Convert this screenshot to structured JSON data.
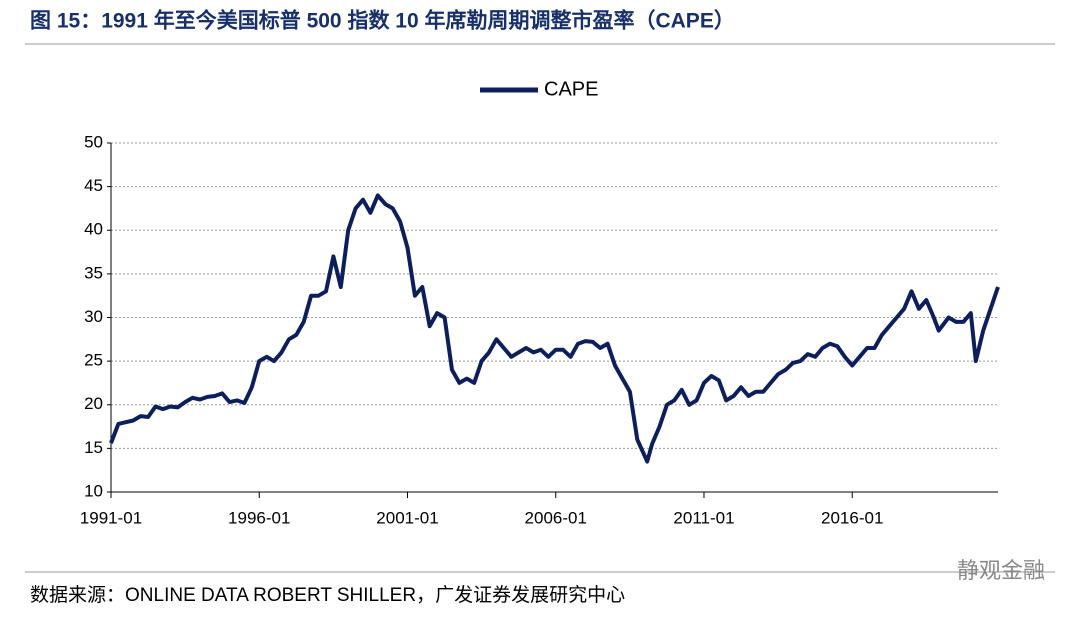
{
  "chart_data": {
    "type": "line",
    "title": "图 15：1991 年至今美国标普 500 指数 10 年席勒周期调整市盈率（CAPE）",
    "source": "数据来源：ONLINE DATA ROBERT SHILLER，广发证券发展研究中心",
    "watermark": "静观金融",
    "x": [
      "1991-01",
      "1991-04",
      "1991-07",
      "1991-10",
      "1992-01",
      "1992-04",
      "1992-07",
      "1992-10",
      "1993-01",
      "1993-04",
      "1993-07",
      "1993-10",
      "1994-01",
      "1994-04",
      "1994-07",
      "1994-10",
      "1995-01",
      "1995-04",
      "1995-07",
      "1995-10",
      "1996-01",
      "1996-04",
      "1996-07",
      "1996-10",
      "1997-01",
      "1997-04",
      "1997-07",
      "1997-10",
      "1998-01",
      "1998-04",
      "1998-07",
      "1998-10",
      "1999-01",
      "1999-04",
      "1999-07",
      "1999-10",
      "2000-01",
      "2000-04",
      "2000-07",
      "2000-10",
      "2001-01",
      "2001-04",
      "2001-07",
      "2001-10",
      "2002-01",
      "2002-04",
      "2002-07",
      "2002-10",
      "2003-01",
      "2003-04",
      "2003-07",
      "2003-10",
      "2004-01",
      "2004-04",
      "2004-07",
      "2004-10",
      "2005-01",
      "2005-04",
      "2005-07",
      "2005-10",
      "2006-01",
      "2006-04",
      "2006-07",
      "2006-10",
      "2007-01",
      "2007-04",
      "2007-07",
      "2007-10",
      "2008-01",
      "2008-04",
      "2008-07",
      "2008-10",
      "2009-02",
      "2009-04",
      "2009-07",
      "2009-10",
      "2010-01",
      "2010-04",
      "2010-07",
      "2010-10",
      "2011-01",
      "2011-04",
      "2011-07",
      "2011-10",
      "2012-01",
      "2012-04",
      "2012-07",
      "2012-10",
      "2013-01",
      "2013-04",
      "2013-07",
      "2013-10",
      "2014-01",
      "2014-04",
      "2014-07",
      "2014-10",
      "2015-01",
      "2015-04",
      "2015-07",
      "2015-10",
      "2016-01",
      "2016-04",
      "2016-07",
      "2016-10",
      "2017-01",
      "2017-04",
      "2017-07",
      "2017-10",
      "2018-01",
      "2018-04",
      "2018-07",
      "2018-10",
      "2018-12",
      "2019-04",
      "2019-07",
      "2019-10",
      "2020-01",
      "2020-03",
      "2020-06",
      "2020-09",
      "2020-12"
    ],
    "series": [
      {
        "name": "CAPE",
        "color": "#0c1f5c",
        "values": [
          15.6,
          17.8,
          18.0,
          18.2,
          18.7,
          18.6,
          19.8,
          19.5,
          19.8,
          19.7,
          20.3,
          20.8,
          20.6,
          20.9,
          21.0,
          21.3,
          20.3,
          20.5,
          20.2,
          22.0,
          25.0,
          25.5,
          25.0,
          26.0,
          27.5,
          28.0,
          29.5,
          32.5,
          32.5,
          33.0,
          37.0,
          33.5,
          40.0,
          42.5,
          43.5,
          42.0,
          44.0,
          43.0,
          42.5,
          41.0,
          38.0,
          32.5,
          33.5,
          29.0,
          30.5,
          30.0,
          24.0,
          22.5,
          23.0,
          22.5,
          25.0,
          26.0,
          27.5,
          26.5,
          25.5,
          26.0,
          26.5,
          26.0,
          26.3,
          25.5,
          26.3,
          26.3,
          25.5,
          27.0,
          27.3,
          27.2,
          26.5,
          27.0,
          24.5,
          23.0,
          21.5,
          16.0,
          13.5,
          15.5,
          17.5,
          20.0,
          20.5,
          21.7,
          20.0,
          20.5,
          22.5,
          23.3,
          22.8,
          20.5,
          21.0,
          22.0,
          21.0,
          21.5,
          21.5,
          22.5,
          23.5,
          24.0,
          24.8,
          25.0,
          25.8,
          25.5,
          26.5,
          27.0,
          26.7,
          25.5,
          24.5,
          25.5,
          26.5,
          26.5,
          28.0,
          29.0,
          30.0,
          31.0,
          33.0,
          31.0,
          32.0,
          30.0,
          28.5,
          30.0,
          29.5,
          29.5,
          30.5,
          25.0,
          28.5,
          31.0,
          33.5
        ]
      }
    ],
    "xlim": [
      "1991-01",
      "2020-12"
    ],
    "xticks": [
      "1991-01",
      "1996-01",
      "2001-01",
      "2006-01",
      "2011-01",
      "2016-01"
    ],
    "ylim": [
      10,
      50
    ],
    "yticks": [
      10,
      15,
      20,
      25,
      30,
      35,
      40,
      45,
      50
    ],
    "grid": true,
    "legend": "top"
  }
}
